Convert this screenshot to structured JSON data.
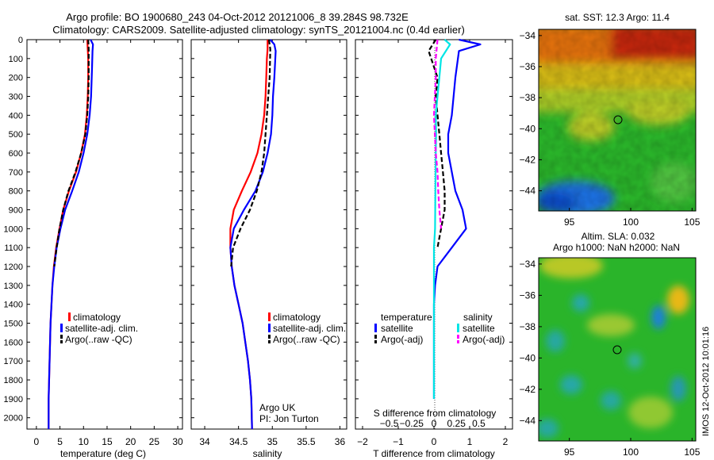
{
  "title_line1": "Argo profile: BO 1900680_243 04-Oct-2012 20121006_8 39.284S 98.732E",
  "title_line2": "Climatology: CARS2009. Satellite-adjusted climatology: synTS_20121004.nc (0.4d earlier)",
  "side_stamp": "IMOS 12-Oct-2012 10:01:16",
  "colors": {
    "climatology": "#ff0000",
    "satellite": "#0000ff",
    "argo": "#000000",
    "sal_satellite": "#00e5e5",
    "sal_argo": "#ff00ff"
  },
  "chart_data": [
    {
      "type": "line",
      "xlabel": "temperature (deg C)",
      "xlim": [
        -2,
        31
      ],
      "ylim": [
        0,
        2060
      ],
      "y_reversed": true,
      "xticks": [
        0,
        5,
        10,
        15,
        20,
        25,
        30
      ],
      "yticks": [
        0,
        100,
        200,
        300,
        400,
        500,
        600,
        700,
        800,
        900,
        1000,
        1100,
        1200,
        1300,
        1400,
        1500,
        1600,
        1700,
        1800,
        1900,
        2000
      ],
      "legend": [
        "climatology",
        "satellite-adj. clim.",
        "Argo(..raw -QC)"
      ],
      "series": [
        {
          "name": "climatology",
          "style": "solid",
          "color_key": "climatology",
          "x": [
            10.8,
            10.9,
            11.0,
            11.0,
            10.9,
            10.7,
            10.3,
            9.5,
            8.4,
            6.9,
            5.7,
            4.9,
            4.2,
            3.7,
            3.4,
            3.2,
            3.0,
            2.9,
            2.8,
            2.7,
            2.6,
            2.6
          ],
          "y": [
            0,
            50,
            100,
            200,
            300,
            400,
            500,
            600,
            700,
            800,
            900,
            1000,
            1100,
            1200,
            1300,
            1400,
            1500,
            1600,
            1700,
            1800,
            1900,
            2060
          ]
        },
        {
          "name": "satellite-adj. clim.",
          "style": "solid",
          "color_key": "satellite",
          "x": [
            11.5,
            12.0,
            11.9,
            11.8,
            11.6,
            11.3,
            10.8,
            10.0,
            9.0,
            7.6,
            6.1,
            5.1,
            4.3,
            3.8,
            3.4,
            3.2,
            3.0,
            2.9,
            2.8,
            2.7,
            2.6,
            2.6
          ],
          "y": [
            0,
            25,
            60,
            150,
            300,
            400,
            500,
            600,
            700,
            800,
            900,
            1000,
            1100,
            1200,
            1300,
            1400,
            1500,
            1600,
            1700,
            1800,
            1900,
            2060
          ]
        },
        {
          "name": "Argo(..raw -QC)",
          "style": "dashed",
          "color_key": "argo",
          "x": [
            11.0,
            11.1,
            11.1,
            11.0,
            10.8,
            10.4,
            9.5,
            8.3,
            6.8,
            5.7,
            4.9,
            4.3,
            3.8
          ],
          "y": [
            0,
            50,
            200,
            300,
            400,
            500,
            600,
            700,
            800,
            900,
            1000,
            1100,
            1200
          ]
        }
      ]
    },
    {
      "type": "line",
      "xlabel": "salinity",
      "xlim": [
        33.8,
        36.1
      ],
      "ylim": [
        0,
        2060
      ],
      "y_reversed": true,
      "xticks": [
        34,
        34.5,
        35,
        35.5,
        36
      ],
      "legend": [
        "climatology",
        "satellite-adj. clim.",
        "Argo(..raw -QC)"
      ],
      "annotation": [
        "Argo UK",
        "PI: Jon Turton"
      ],
      "series": [
        {
          "name": "climatology",
          "style": "solid",
          "color_key": "climatology",
          "x": [
            34.93,
            34.93,
            34.92,
            34.91,
            34.9,
            34.88,
            34.84,
            34.78,
            34.68,
            34.55,
            34.43,
            34.38,
            34.38,
            34.4,
            34.44,
            34.5,
            34.56,
            34.6,
            34.64,
            34.67,
            34.69,
            34.7
          ],
          "y": [
            0,
            50,
            100,
            200,
            300,
            400,
            500,
            600,
            700,
            800,
            900,
            1000,
            1100,
            1200,
            1300,
            1400,
            1500,
            1600,
            1700,
            1800,
            1900,
            2060
          ]
        },
        {
          "name": "satellite-adj. clim.",
          "style": "solid",
          "color_key": "satellite",
          "x": [
            34.97,
            35.03,
            35.05,
            35.03,
            35.01,
            35.0,
            34.98,
            34.93,
            34.86,
            34.75,
            34.58,
            34.43,
            34.38,
            34.4,
            34.44,
            34.5,
            34.56,
            34.6,
            34.64,
            34.67,
            34.69,
            34.7
          ],
          "y": [
            0,
            25,
            60,
            200,
            300,
            400,
            500,
            600,
            700,
            800,
            900,
            1000,
            1100,
            1200,
            1300,
            1400,
            1500,
            1600,
            1700,
            1800,
            1900,
            2060
          ]
        },
        {
          "name": "Argo(..raw -QC)",
          "style": "dashed",
          "color_key": "argo",
          "x": [
            34.95,
            34.97,
            34.96,
            34.94,
            34.92,
            34.9,
            34.88,
            34.84,
            34.77,
            34.67,
            34.53,
            34.42,
            34.39
          ],
          "y": [
            0,
            50,
            200,
            300,
            400,
            500,
            600,
            700,
            800,
            900,
            1000,
            1100,
            1200
          ]
        }
      ]
    },
    {
      "type": "line",
      "xlabel": "T difference from climatology",
      "xlabel_top": "S difference from climatology",
      "xlim": [
        -2.2,
        2.2
      ],
      "ylim": [
        0,
        2060
      ],
      "y_reversed": true,
      "xticks": [
        -2,
        -1,
        0,
        1,
        2
      ],
      "xticks_S": [
        -0.5,
        -0.25,
        0,
        0.25,
        0.5
      ],
      "legend_headers": [
        "temperature",
        "salinity"
      ],
      "legend": [
        "satellite",
        "Argo(-adj)",
        "satellite",
        "Argo(-adj)"
      ],
      "series": [
        {
          "name": "temperature satellite",
          "style": "solid",
          "color_key": "satellite",
          "x": [
            0.7,
            1.3,
            0.7,
            0.6,
            0.5,
            0.4,
            0.4,
            0.5,
            0.6,
            0.8,
            0.9,
            0.5,
            0.1,
            0.03,
            0.0,
            0.0,
            0.0,
            0.0,
            0.0,
            0.0
          ],
          "y": [
            0,
            25,
            60,
            200,
            400,
            500,
            600,
            700,
            800,
            900,
            1000,
            1100,
            1200,
            1300,
            1400,
            1500,
            1600,
            1700,
            1800,
            1900
          ]
        },
        {
          "name": "temperature Argo(-adj)",
          "style": "dashed",
          "color_key": "argo",
          "x": [
            0.05,
            -0.15,
            0.1,
            0.05,
            0.1,
            0.15,
            0.2,
            0.25,
            0.3,
            0.3,
            0.2,
            0.1
          ],
          "y": [
            0,
            60,
            200,
            300,
            400,
            500,
            600,
            700,
            800,
            900,
            1000,
            1100
          ]
        },
        {
          "name": "salinity satellite",
          "style": "solid",
          "color_key": "sal_satellite",
          "x": [
            0.3,
            0.45,
            0.2,
            0.15,
            0.1,
            0.05,
            0.06,
            0.05,
            0.04,
            0.03,
            0.0,
            0.0,
            0.0,
            0.0,
            0.0,
            0.0,
            0.0,
            0.0,
            0.0
          ],
          "y": [
            0,
            25,
            100,
            200,
            300,
            400,
            500,
            600,
            800,
            1000,
            1100,
            1200,
            1300,
            1400,
            1500,
            1600,
            1700,
            1800,
            1900
          ]
        },
        {
          "name": "salinity Argo(-adj)",
          "style": "dashed",
          "color_key": "sal_argo",
          "x": [
            0.1,
            0.05,
            0.05,
            0.0,
            0.05,
            0.1,
            0.12,
            0.15,
            0.2
          ],
          "y": [
            0,
            100,
            200,
            400,
            600,
            700,
            800,
            900,
            1000
          ]
        }
      ]
    },
    {
      "type": "heatmap",
      "title": "sat. SST: 12.3 Argo: 11.4",
      "xlim": [
        92.5,
        105.3
      ],
      "ylim": [
        -45.3,
        -33.6
      ],
      "xticks": [
        95,
        100,
        105
      ],
      "yticks": [
        -34,
        -36,
        -38,
        -40,
        -42,
        -44
      ],
      "marker": [
        98.732,
        -39.284
      ]
    },
    {
      "type": "heatmap",
      "title_line1": "Altim. SLA: 0.032",
      "title_line2": "Argo h1000: NaN h2000: NaN",
      "xlim": [
        92.5,
        105.3
      ],
      "ylim": [
        -45.3,
        -33.6
      ],
      "xticks": [
        95,
        100,
        105
      ],
      "yticks": [
        -34,
        -36,
        -38,
        -40,
        -42,
        -44
      ],
      "marker": [
        98.732,
        -39.284
      ]
    }
  ]
}
